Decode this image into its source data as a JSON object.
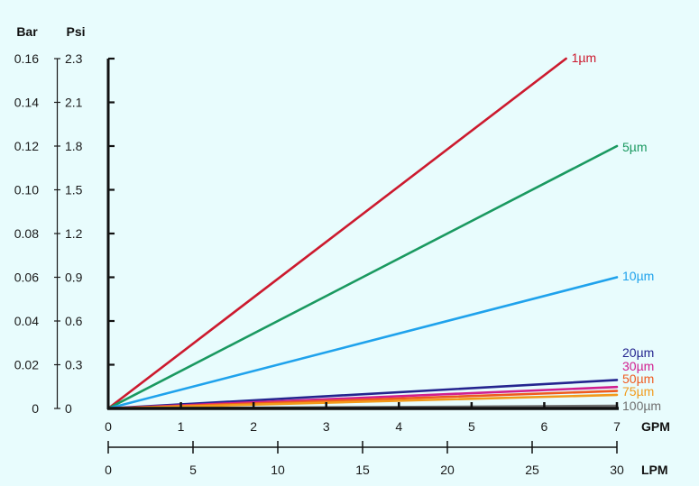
{
  "chart_data": {
    "type": "line",
    "title": "",
    "xlabel": "GPM",
    "x2label": "LPM",
    "ylabel": "Bar",
    "y2label": "Psi",
    "xlim": [
      0,
      7
    ],
    "x2lim": [
      0,
      30
    ],
    "ylim": [
      0,
      0.16
    ],
    "x_ticks": [
      "0",
      "1",
      "2",
      "3",
      "4",
      "5",
      "6",
      "7"
    ],
    "x2_ticks": [
      "0",
      "5",
      "10",
      "15",
      "20",
      "25",
      "30"
    ],
    "y_ticks": [
      "0",
      "0.02",
      "0.04",
      "0.06",
      "0.08",
      "0.10",
      "0.12",
      "0.14",
      "0.16"
    ],
    "y2_ticks": [
      "0",
      "0.3",
      "0.6",
      "0.9",
      "1.2",
      "1.5",
      "1.8",
      "2.1",
      "2.3"
    ],
    "grid": false,
    "legend": "inline labels at line ends",
    "series": [
      {
        "name": "1µm",
        "color": "#cc1a2e",
        "x": [
          0,
          6.3
        ],
        "y": [
          0,
          0.16
        ]
      },
      {
        "name": "5µm",
        "color": "#1a9960",
        "x": [
          0,
          7
        ],
        "y": [
          0,
          0.12
        ]
      },
      {
        "name": "10µm",
        "color": "#1fa2ec",
        "x": [
          0,
          7
        ],
        "y": [
          0,
          0.06
        ]
      },
      {
        "name": "20µm",
        "color": "#24248f",
        "x": [
          0,
          7
        ],
        "y": [
          0,
          0.013
        ]
      },
      {
        "name": "30µm",
        "color": "#d11f8f",
        "x": [
          0,
          7
        ],
        "y": [
          0,
          0.0098
        ]
      },
      {
        "name": "50µm",
        "color": "#ef5a1f",
        "x": [
          0,
          7
        ],
        "y": [
          0,
          0.008
        ]
      },
      {
        "name": "75µm",
        "color": "#f29a1a",
        "x": [
          0,
          7
        ],
        "y": [
          0,
          0.0062
        ]
      },
      {
        "name": "100µm",
        "color": "#6f6f6f",
        "x": [
          0,
          7
        ],
        "y": [
          0,
          0.0012
        ]
      }
    ]
  }
}
